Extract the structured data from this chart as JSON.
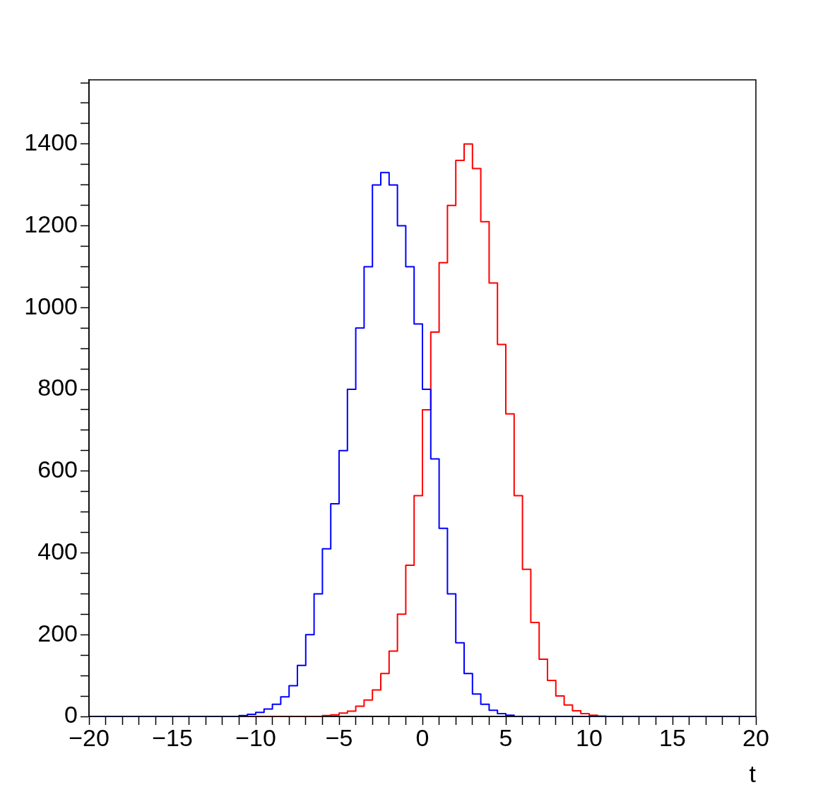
{
  "chart_data": {
    "type": "histogram",
    "xlabel": "t",
    "bins": [
      -20,
      -19.5,
      -19,
      -18.5,
      -18,
      -17.5,
      -17,
      -16.5,
      -16,
      -15.5,
      -15,
      -14.5,
      -14,
      -13.5,
      -13,
      -12.5,
      -12,
      -11.5,
      -11,
      -10.5,
      -10,
      -9.5,
      -9,
      -8.5,
      -8,
      -7.5,
      -7,
      -6.5,
      -6,
      -5.5,
      -5,
      -4.5,
      -4,
      -3.5,
      -3,
      -2.5,
      -2,
      -1.5,
      -1,
      -0.5,
      0,
      0.5,
      1,
      1.5,
      2,
      2.5,
      3,
      3.5,
      4,
      4.5,
      5,
      5.5,
      6,
      6.5,
      7,
      7.5,
      8,
      8.5,
      9,
      9.5,
      10,
      10.5,
      11,
      11.5,
      12,
      12.5,
      13,
      13.5,
      14,
      14.5,
      15,
      15.5,
      16,
      16.5,
      17,
      17.5,
      18,
      18.5,
      19,
      19.5,
      20
    ],
    "series": [
      {
        "color": "#0000ff",
        "values": [
          0,
          0,
          0,
          0,
          0,
          0,
          0,
          0,
          0,
          0,
          0,
          0,
          0,
          0,
          0,
          0,
          0,
          0,
          2,
          5,
          10,
          18,
          30,
          48,
          75,
          125,
          200,
          300,
          410,
          520,
          650,
          800,
          950,
          1100,
          1300,
          1330,
          1300,
          1200,
          1100,
          960,
          800,
          630,
          460,
          300,
          180,
          105,
          55,
          30,
          15,
          7,
          3,
          0,
          0,
          0,
          0,
          0,
          0,
          0,
          0,
          0,
          0,
          0,
          0,
          0,
          0,
          0,
          0,
          0,
          0,
          0,
          0,
          0,
          0,
          0,
          0,
          0,
          0,
          0,
          0,
          0
        ]
      },
      {
        "color": "#ff0000",
        "values": [
          0,
          0,
          0,
          0,
          0,
          0,
          0,
          0,
          0,
          0,
          0,
          0,
          0,
          0,
          0,
          0,
          0,
          0,
          0,
          0,
          0,
          0,
          0,
          0,
          0,
          0,
          0,
          0,
          2,
          4,
          8,
          13,
          25,
          40,
          65,
          105,
          160,
          250,
          370,
          540,
          750,
          940,
          1110,
          1250,
          1360,
          1400,
          1340,
          1210,
          1060,
          910,
          740,
          540,
          360,
          230,
          140,
          88,
          50,
          28,
          14,
          7,
          3,
          1,
          0,
          0,
          0,
          0,
          0,
          0,
          0,
          0,
          0,
          0,
          0,
          0,
          0,
          0,
          0,
          0,
          0,
          0
        ]
      }
    ],
    "xlim": [
      -20,
      20
    ],
    "xticks": [
      -20,
      {
        "value": -19,
        "label": null
      },
      {
        "value": -18,
        "label": null
      },
      {
        "value": -17,
        "label": null
      },
      {
        "value": -16,
        "label": null
      },
      {
        "value": -15,
        "label": "−15"
      },
      {
        "value": -14,
        "label": null
      },
      {
        "value": -13,
        "label": null
      },
      {
        "value": -12,
        "label": null
      },
      {
        "value": -11,
        "label": null
      },
      {
        "value": -10,
        "label": "−10"
      },
      {
        "value": -9,
        "label": null
      },
      {
        "value": -8,
        "label": null
      },
      {
        "value": -7,
        "label": null
      },
      {
        "value": -6,
        "label": null
      },
      {
        "value": -5,
        "label": "−5"
      },
      {
        "value": -4,
        "label": null
      },
      {
        "value": -3,
        "label": null
      },
      {
        "value": -2,
        "label": null
      },
      {
        "value": -1,
        "label": null
      },
      0,
      {
        "value": 1,
        "label": null
      },
      {
        "value": 2,
        "label": null
      },
      {
        "value": 3,
        "label": null
      },
      {
        "value": 4,
        "label": null
      },
      5,
      {
        "value": 6,
        "label": null
      },
      {
        "value": 7,
        "label": null
      },
      {
        "value": 8,
        "label": null
      },
      {
        "value": 9,
        "label": null
      },
      10,
      {
        "value": 11,
        "label": null
      },
      {
        "value": 12,
        "label": null
      },
      {
        "value": 13,
        "label": null
      },
      {
        "value": 14,
        "label": null
      },
      15,
      {
        "value": 16,
        "label": null
      },
      {
        "value": 17,
        "label": null
      },
      {
        "value": 18,
        "label": null
      },
      {
        "value": 19,
        "label": null
      },
      20
    ],
    "ylim": [
      0,
      1557
    ],
    "yticks": [
      0,
      {
        "value": 50,
        "label": null
      },
      {
        "value": 100,
        "label": null
      },
      {
        "value": 150,
        "label": null
      },
      200,
      {
        "value": 250,
        "label": null
      },
      {
        "value": 300,
        "label": null
      },
      {
        "value": 350,
        "label": null
      },
      400,
      {
        "value": 450,
        "label": null
      },
      {
        "value": 500,
        "label": null
      },
      {
        "value": 550,
        "label": null
      },
      600,
      {
        "value": 650,
        "label": null
      },
      {
        "value": 700,
        "label": null
      },
      {
        "value": 750,
        "label": null
      },
      800,
      {
        "value": 850,
        "label": null
      },
      {
        "value": 900,
        "label": null
      },
      {
        "value": 950,
        "label": null
      },
      1000,
      {
        "value": 1050,
        "label": null
      },
      {
        "value": 1100,
        "label": null
      },
      {
        "value": 1150,
        "label": null
      },
      1200,
      {
        "value": 1250,
        "label": null
      },
      {
        "value": 1300,
        "label": null
      },
      {
        "value": 1350,
        "label": null
      },
      1400,
      {
        "value": 1450,
        "label": null
      },
      {
        "value": 1500,
        "label": null
      },
      {
        "value": 1550,
        "label": null
      }
    ],
    "grid": false,
    "legend": false
  }
}
